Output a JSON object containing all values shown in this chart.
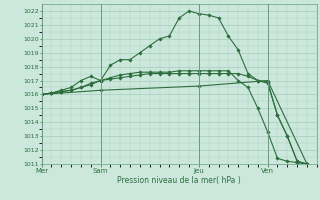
{
  "title": "Pression niveau de la mer( hPa )",
  "background_color": "#cce8dc",
  "grid_color": "#a8ccbc",
  "line_color": "#2d6e3e",
  "ylim": [
    1011,
    1022.5
  ],
  "yticks": [
    1011,
    1012,
    1013,
    1014,
    1015,
    1016,
    1017,
    1018,
    1019,
    1020,
    1021,
    1022
  ],
  "day_labels": [
    "Mer",
    "Sam",
    "Jeu",
    "Ven"
  ],
  "day_positions": [
    0,
    6,
    16,
    23
  ],
  "xlim": [
    0,
    28
  ],
  "series1_x": [
    0,
    1,
    2,
    3,
    4,
    5,
    6,
    7,
    8,
    9,
    10,
    11,
    12,
    13,
    14,
    15,
    16,
    17,
    18,
    19,
    20,
    21,
    22,
    23,
    24,
    25,
    26,
    27
  ],
  "series1_y": [
    1016.0,
    1016.1,
    1016.3,
    1016.5,
    1017.0,
    1017.3,
    1017.0,
    1018.1,
    1018.5,
    1018.5,
    1019.0,
    1019.5,
    1020.0,
    1020.2,
    1021.5,
    1022.0,
    1021.8,
    1021.7,
    1021.5,
    1020.2,
    1019.2,
    1017.5,
    1017.0,
    1016.8,
    1014.5,
    1013.0,
    1011.2,
    1011.0
  ],
  "series2_x": [
    0,
    1,
    2,
    3,
    4,
    5,
    6,
    7,
    8,
    9,
    10,
    11,
    12,
    13,
    14,
    15,
    16,
    17,
    18,
    19,
    20,
    21,
    22,
    23,
    24,
    25,
    26,
    27
  ],
  "series2_y": [
    1016.0,
    1016.1,
    1016.2,
    1016.3,
    1016.5,
    1016.7,
    1017.0,
    1017.1,
    1017.2,
    1017.3,
    1017.4,
    1017.5,
    1017.5,
    1017.5,
    1017.5,
    1017.5,
    1017.5,
    1017.5,
    1017.5,
    1017.5,
    1017.5,
    1017.3,
    1017.0,
    1016.9,
    1014.5,
    1013.0,
    1011.2,
    1011.0
  ],
  "series3_x": [
    0,
    6,
    16,
    23,
    27
  ],
  "series3_y": [
    1016.0,
    1016.3,
    1016.6,
    1017.0,
    1011.0
  ],
  "series4_x": [
    0,
    1,
    2,
    3,
    4,
    5,
    6,
    7,
    8,
    9,
    10,
    11,
    12,
    13,
    14,
    15,
    16,
    17,
    18,
    19,
    20,
    21,
    22,
    23,
    24,
    25,
    26,
    27
  ],
  "series4_y": [
    1016.0,
    1016.1,
    1016.2,
    1016.3,
    1016.5,
    1016.8,
    1017.0,
    1017.2,
    1017.4,
    1017.5,
    1017.6,
    1017.6,
    1017.6,
    1017.6,
    1017.7,
    1017.7,
    1017.7,
    1017.7,
    1017.7,
    1017.7,
    1017.0,
    1016.5,
    1015.0,
    1013.3,
    1011.4,
    1011.2,
    1011.1,
    1011.0
  ]
}
